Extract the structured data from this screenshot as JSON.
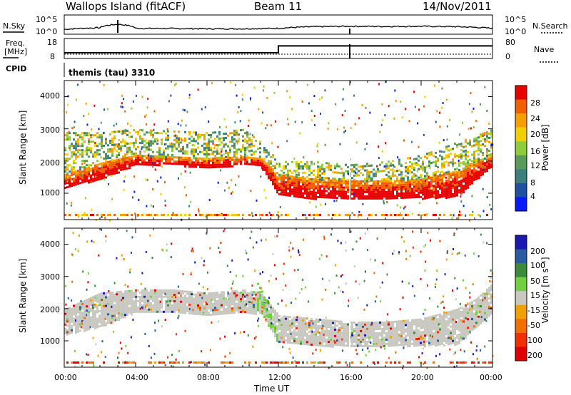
{
  "header": {
    "radar": "Wallops Island (fitACF)",
    "beam": "Beam 11",
    "date": "14/Nov/2011"
  },
  "strip": {
    "nsky_label": "N.Sky",
    "nsky_top": "10^5",
    "nsky_bottom": "10^0",
    "nsearch_label": "N.Search",
    "nsearch_top": "10^5",
    "nsearch_bottom": "10^0",
    "freq_label": "Freq.",
    "freq_unit": "[MHz]",
    "freq_top": "18",
    "freq_bottom": "8",
    "nave_label": "Nave",
    "nave_top": "80",
    "nave_bottom": "0",
    "cpid_label": "CPID",
    "cpid_value": "themis (tau) 3310"
  },
  "axes": {
    "ylabel": "Slant Range [km]",
    "xlabel": "Time UT",
    "xticks": [
      "00:00",
      "04:00",
      "08:00",
      "12:00",
      "16:00",
      "20:00",
      "00:00"
    ],
    "yticks": [
      "1000",
      "2000",
      "3000",
      "4000"
    ]
  },
  "colorbars": {
    "power_label": "Power [dB]",
    "power_ticks": [
      "4",
      "8",
      "12",
      "16",
      "20",
      "24",
      "28"
    ],
    "velocity_label": "Velocity [m s⁻¹]",
    "velocity_ticks": [
      "200",
      "100",
      "50",
      "15",
      "-15",
      "-50",
      "-100",
      "-200"
    ]
  },
  "colors": {
    "power": [
      "#0a1aff",
      "#2050a0",
      "#3d7f7a",
      "#5a9a5a",
      "#8fcc3c",
      "#f0d000",
      "#f5a000",
      "#f06000",
      "#e80000"
    ],
    "velocity": [
      "#1a1ab0",
      "#2a5aa0",
      "#3c8a3c",
      "#70d040",
      "#c8c8c0",
      "#f0a000",
      "#f07000",
      "#f03000",
      "#e00000"
    ]
  },
  "chart_data": [
    {
      "type": "line",
      "title": "N.Sky / N.Search",
      "x": [
        "00:00",
        "01:00",
        "02:00",
        "03:00",
        "04:00",
        "08:00",
        "10:00",
        "12:00",
        "14:00",
        "16:00",
        "18:00",
        "20:00",
        "22:00",
        "24:00"
      ],
      "series": [
        {
          "name": "N.Sky",
          "values": [
            10,
            20,
            30,
            300,
            20,
            15,
            15,
            20,
            60,
            80,
            70,
            80,
            60,
            20
          ]
        }
      ]
    },
    {
      "type": "line",
      "title": "Freq. / Nave",
      "x": [
        "00:00",
        "12:00",
        "12:01",
        "24:00"
      ],
      "series": [
        {
          "name": "Freq. [MHz]",
          "values": [
            10.5,
            10.5,
            14.5,
            14.5
          ]
        },
        {
          "name": "Nave",
          "values": [
            16,
            16,
            16,
            16
          ]
        }
      ]
    },
    {
      "type": "heatmap",
      "title": "Power [dB]",
      "xlabel": "Time UT",
      "ylabel": "Slant Range [km]",
      "xlim": [
        0,
        24
      ],
      "ylim": [
        180,
        4500
      ],
      "clim": [
        0,
        30
      ],
      "bands": [
        {
          "name": "main echo",
          "t": [
            0,
            2,
            4,
            6,
            8,
            10,
            11,
            12,
            14,
            16,
            18,
            20,
            22,
            23,
            24
          ],
          "low": [
            1200,
            1450,
            1900,
            1900,
            1800,
            1900,
            1850,
            950,
            850,
            850,
            850,
            850,
            900,
            1400,
            1900
          ],
          "high": [
            1600,
            1950,
            2200,
            2150,
            2100,
            2150,
            2100,
            1600,
            1450,
            1400,
            1400,
            1450,
            1700,
            2000,
            2200
          ],
          "power": 27
        },
        {
          "name": "upper scatter",
          "t": [
            0,
            2,
            4,
            6,
            8,
            10,
            11,
            12,
            14,
            16,
            18,
            20,
            22,
            24
          ],
          "low": [
            1600,
            2000,
            2200,
            2150,
            2100,
            2200,
            2100,
            1600,
            1450,
            1400,
            1400,
            1450,
            1700,
            2200
          ],
          "high": [
            2900,
            2900,
            3000,
            2950,
            2900,
            3000,
            2600,
            2000,
            2000,
            1900,
            2000,
            2200,
            2600,
            3000
          ],
          "power": 17
        }
      ]
    },
    {
      "type": "heatmap",
      "title": "Velocity [m s⁻¹]",
      "xlabel": "Time UT",
      "ylabel": "Slant Range [km]",
      "xlim": [
        0,
        24
      ],
      "ylim": [
        180,
        4500
      ],
      "clim": [
        -200,
        200
      ],
      "bands": [
        {
          "name": "ground scatter",
          "t": [
            0,
            2,
            4,
            6,
            8,
            10,
            11,
            12,
            14,
            16,
            18,
            20,
            22,
            23,
            24
          ],
          "low": [
            1200,
            1450,
            1900,
            1900,
            1800,
            1900,
            1850,
            950,
            850,
            850,
            850,
            850,
            900,
            1400,
            1900
          ],
          "high": [
            2000,
            2500,
            2600,
            2600,
            2500,
            2600,
            2500,
            1800,
            1700,
            1600,
            1600,
            1700,
            2000,
            2300,
            2800
          ],
          "velocity": 0
        },
        {
          "name": "positive streak",
          "t": [
            10.8,
            11.2,
            11.6,
            11.9
          ],
          "low": [
            2000,
            1700,
            1300,
            1000
          ],
          "high": [
            2800,
            2400,
            1800,
            1400
          ],
          "velocity": 30
        }
      ]
    }
  ]
}
